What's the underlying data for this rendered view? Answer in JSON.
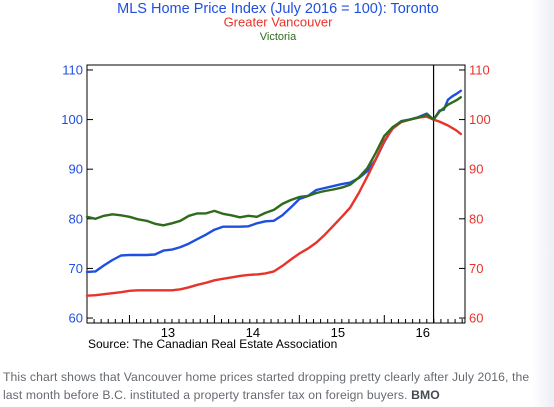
{
  "chart_data": {
    "type": "line",
    "title": "MLS Home Price Index (July 2016 = 100): Toronto",
    "subtitle_lines": [
      "Greater Vancouver",
      "Victoria"
    ],
    "source": "Source:  The Canadian Real Estate Association",
    "x_tick_labels": [
      "13",
      "14",
      "15",
      "16"
    ],
    "x_tick_values": [
      2013.5,
      2014.5,
      2015.5,
      2016.5
    ],
    "x_range": [
      2012.5,
      2016.95
    ],
    "y_ticks": [
      60,
      70,
      80,
      90,
      100,
      110
    ],
    "ylim": [
      59,
      111
    ],
    "reference_line": {
      "x": 2016.58,
      "label": "July 2016"
    },
    "grid": false,
    "series": [
      {
        "name": "Toronto",
        "color": "#1f4fe0",
        "points": [
          [
            2012.5,
            69.3
          ],
          [
            2012.6,
            69.4
          ],
          [
            2012.7,
            70.6
          ],
          [
            2012.8,
            71.7
          ],
          [
            2012.9,
            72.6
          ],
          [
            2013.0,
            72.7
          ],
          [
            2013.1,
            72.7
          ],
          [
            2013.2,
            72.7
          ],
          [
            2013.3,
            72.8
          ],
          [
            2013.4,
            73.6
          ],
          [
            2013.5,
            73.8
          ],
          [
            2013.6,
            74.3
          ],
          [
            2013.7,
            75.0
          ],
          [
            2013.8,
            75.9
          ],
          [
            2013.9,
            76.8
          ],
          [
            2014.0,
            77.8
          ],
          [
            2014.1,
            78.4
          ],
          [
            2014.2,
            78.4
          ],
          [
            2014.3,
            78.4
          ],
          [
            2014.4,
            78.5
          ],
          [
            2014.5,
            79.1
          ],
          [
            2014.6,
            79.5
          ],
          [
            2014.7,
            79.6
          ],
          [
            2014.8,
            80.7
          ],
          [
            2014.9,
            82.3
          ],
          [
            2015.0,
            84.0
          ],
          [
            2015.1,
            84.6
          ],
          [
            2015.2,
            85.8
          ],
          [
            2015.3,
            86.2
          ],
          [
            2015.4,
            86.6
          ],
          [
            2015.5,
            87.0
          ],
          [
            2015.6,
            87.3
          ],
          [
            2015.7,
            88.2
          ],
          [
            2015.8,
            89.6
          ],
          [
            2015.9,
            92.0
          ],
          [
            2016.0,
            95.5
          ],
          [
            2016.1,
            98.4
          ],
          [
            2016.2,
            99.7
          ],
          [
            2016.3,
            100.0
          ],
          [
            2016.4,
            100.5
          ],
          [
            2016.5,
            101.2
          ],
          [
            2016.58,
            100.0
          ],
          [
            2016.65,
            101.8
          ],
          [
            2016.7,
            102.0
          ],
          [
            2016.75,
            104.0
          ],
          [
            2016.8,
            104.7
          ],
          [
            2016.85,
            105.2
          ],
          [
            2016.9,
            105.8
          ]
        ]
      },
      {
        "name": "Greater Vancouver",
        "color": "#e8332a",
        "points": [
          [
            2012.5,
            64.5
          ],
          [
            2012.6,
            64.6
          ],
          [
            2012.7,
            64.8
          ],
          [
            2012.8,
            65.0
          ],
          [
            2012.9,
            65.2
          ],
          [
            2013.0,
            65.5
          ],
          [
            2013.1,
            65.6
          ],
          [
            2013.2,
            65.6
          ],
          [
            2013.3,
            65.6
          ],
          [
            2013.4,
            65.6
          ],
          [
            2013.5,
            65.6
          ],
          [
            2013.6,
            65.8
          ],
          [
            2013.7,
            66.2
          ],
          [
            2013.8,
            66.7
          ],
          [
            2013.9,
            67.1
          ],
          [
            2014.0,
            67.6
          ],
          [
            2014.1,
            67.9
          ],
          [
            2014.2,
            68.2
          ],
          [
            2014.3,
            68.5
          ],
          [
            2014.4,
            68.7
          ],
          [
            2014.5,
            68.8
          ],
          [
            2014.6,
            69.0
          ],
          [
            2014.7,
            69.4
          ],
          [
            2014.8,
            70.5
          ],
          [
            2014.9,
            71.8
          ],
          [
            2015.0,
            73.0
          ],
          [
            2015.1,
            74.0
          ],
          [
            2015.2,
            75.2
          ],
          [
            2015.3,
            76.8
          ],
          [
            2015.4,
            78.6
          ],
          [
            2015.5,
            80.4
          ],
          [
            2015.6,
            82.3
          ],
          [
            2015.7,
            85.2
          ],
          [
            2015.8,
            88.5
          ],
          [
            2015.9,
            92.0
          ],
          [
            2016.0,
            95.7
          ],
          [
            2016.1,
            98.2
          ],
          [
            2016.2,
            99.5
          ],
          [
            2016.3,
            100.0
          ],
          [
            2016.4,
            100.4
          ],
          [
            2016.5,
            100.6
          ],
          [
            2016.58,
            100.0
          ],
          [
            2016.65,
            99.6
          ],
          [
            2016.75,
            98.8
          ],
          [
            2016.85,
            97.8
          ],
          [
            2016.9,
            97.1
          ]
        ]
      },
      {
        "name": "Victoria",
        "color": "#2e6b1c",
        "points": [
          [
            2012.5,
            80.4
          ],
          [
            2012.6,
            80.0
          ],
          [
            2012.7,
            80.6
          ],
          [
            2012.8,
            80.9
          ],
          [
            2012.9,
            80.7
          ],
          [
            2013.0,
            80.4
          ],
          [
            2013.1,
            79.9
          ],
          [
            2013.2,
            79.6
          ],
          [
            2013.3,
            79.0
          ],
          [
            2013.4,
            78.7
          ],
          [
            2013.5,
            79.1
          ],
          [
            2013.6,
            79.6
          ],
          [
            2013.7,
            80.6
          ],
          [
            2013.8,
            81.1
          ],
          [
            2013.9,
            81.1
          ],
          [
            2014.0,
            81.6
          ],
          [
            2014.1,
            81.0
          ],
          [
            2014.2,
            80.7
          ],
          [
            2014.3,
            80.3
          ],
          [
            2014.4,
            80.6
          ],
          [
            2014.5,
            80.4
          ],
          [
            2014.6,
            81.2
          ],
          [
            2014.7,
            81.8
          ],
          [
            2014.8,
            83.0
          ],
          [
            2014.9,
            83.8
          ],
          [
            2015.0,
            84.4
          ],
          [
            2015.1,
            84.6
          ],
          [
            2015.2,
            85.2
          ],
          [
            2015.3,
            85.6
          ],
          [
            2015.4,
            85.9
          ],
          [
            2015.5,
            86.3
          ],
          [
            2015.6,
            86.9
          ],
          [
            2015.7,
            88.3
          ],
          [
            2015.8,
            90.2
          ],
          [
            2015.9,
            93.3
          ],
          [
            2016.0,
            96.7
          ],
          [
            2016.1,
            98.5
          ],
          [
            2016.2,
            99.6
          ],
          [
            2016.3,
            100.0
          ],
          [
            2016.4,
            100.4
          ],
          [
            2016.5,
            101.0
          ],
          [
            2016.58,
            100.0
          ],
          [
            2016.65,
            101.6
          ],
          [
            2016.75,
            103.0
          ],
          [
            2016.85,
            103.9
          ],
          [
            2016.9,
            104.5
          ]
        ]
      }
    ]
  },
  "colors": {
    "title": "#1f4fe0",
    "left_axis": "#1f4fe0",
    "right_axis": "#e8332a",
    "victoria_label": "#2e6b1c",
    "caption_text": "#666a70"
  },
  "caption": {
    "text": "This chart shows that Vancouver home prices started dropping pretty clearly after July 2016, the last month before B.C. instituted a property transfer tax on foreign buyers.",
    "credit": "BMO"
  }
}
